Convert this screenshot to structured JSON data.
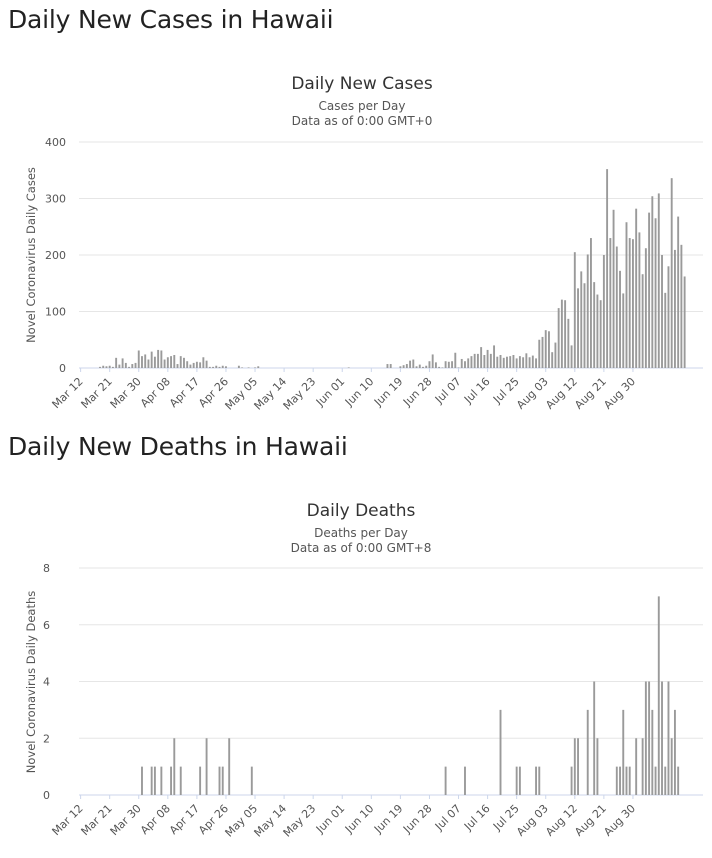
{
  "headings": {
    "cases": "Daily New Cases in Hawaii",
    "deaths": "Daily New Deaths in Hawaii"
  },
  "chart_data": [
    {
      "type": "bar",
      "title": "Daily New Cases",
      "subtitle": "Cases per Day",
      "subtitle2": "Data as of 0:00 GMT+0",
      "xlabel": "",
      "ylabel": "Novel Coronavirus Daily Cases",
      "ylim": [
        0,
        400
      ],
      "yticks": [
        0,
        100,
        200,
        300,
        400
      ],
      "start_date": "Mar 12",
      "xtick_labels": [
        "Mar 12",
        "Mar 21",
        "Mar 30",
        "Apr 08",
        "Apr 17",
        "Apr 26",
        "May 05",
        "May 14",
        "May 23",
        "Jun 01",
        "Jun 10",
        "Jun 19",
        "Jun 28",
        "Jul 07",
        "Jul 16",
        "Jul 25",
        "Aug 03",
        "Aug 12",
        "Aug 21",
        "Aug 30"
      ],
      "values": [
        0,
        0,
        0,
        0,
        0,
        0,
        2,
        4,
        3,
        4,
        2,
        18,
        6,
        17,
        9,
        2,
        7,
        9,
        31,
        21,
        24,
        15,
        29,
        20,
        32,
        31,
        15,
        19,
        21,
        23,
        7,
        21,
        18,
        12,
        6,
        9,
        11,
        10,
        19,
        13,
        2,
        2,
        4,
        2,
        4,
        3,
        0,
        0,
        0,
        4,
        1,
        0,
        1,
        0,
        1,
        3,
        0,
        0,
        0,
        0,
        0,
        0,
        0,
        0,
        0,
        0,
        0,
        0,
        0,
        0,
        0,
        0,
        0,
        0,
        0,
        0,
        0,
        0,
        0,
        0,
        0,
        0,
        0,
        1,
        0,
        0,
        0,
        0,
        0,
        0,
        0,
        0,
        0,
        0,
        0,
        7,
        7,
        0,
        0,
        3,
        5,
        7,
        13,
        15,
        3,
        6,
        2,
        4,
        12,
        24,
        10,
        2,
        1,
        12,
        11,
        12,
        27,
        1,
        16,
        12,
        17,
        21,
        25,
        25,
        37,
        23,
        32,
        25,
        40,
        20,
        23,
        18,
        20,
        21,
        23,
        17,
        21,
        19,
        26,
        19,
        22,
        17,
        50,
        55,
        67,
        65,
        28,
        45,
        106,
        121,
        120,
        87,
        40,
        205,
        141,
        171,
        150,
        201,
        230,
        152,
        130,
        120,
        200,
        352,
        230,
        280,
        215,
        172,
        132,
        258,
        230,
        228,
        282,
        240,
        166,
        212,
        275,
        304,
        265,
        309,
        200,
        133,
        180,
        336,
        209,
        268,
        218,
        162
      ]
    },
    {
      "type": "bar",
      "title": "Daily Deaths",
      "subtitle": "Deaths per Day",
      "subtitle2": "Data as of 0:00 GMT+8",
      "xlabel": "",
      "ylabel": "Novel Coronavirus Daily Deaths",
      "ylim": [
        0,
        8
      ],
      "yticks": [
        0,
        2,
        4,
        6,
        8
      ],
      "start_date": "Mar 12",
      "xtick_labels": [
        "Mar 12",
        "Mar 21",
        "Mar 30",
        "Apr 08",
        "Apr 17",
        "Apr 26",
        "May 05",
        "May 14",
        "May 23",
        "Jun 01",
        "Jun 10",
        "Jun 19",
        "Jun 28",
        "Jul 07",
        "Jul 16",
        "Jul 25",
        "Aug 03",
        "Aug 12",
        "Aug 21",
        "Aug 30"
      ],
      "values": [
        0,
        0,
        0,
        0,
        0,
        0,
        0,
        0,
        0,
        0,
        0,
        0,
        0,
        0,
        0,
        0,
        0,
        0,
        0,
        1,
        0,
        0,
        1,
        1,
        0,
        1,
        0,
        0,
        1,
        2,
        0,
        1,
        0,
        0,
        0,
        0,
        0,
        1,
        0,
        2,
        0,
        0,
        0,
        1,
        1,
        0,
        2,
        0,
        0,
        0,
        0,
        0,
        0,
        1,
        0,
        0,
        0,
        0,
        0,
        0,
        0,
        0,
        0,
        0,
        0,
        0,
        0,
        0,
        0,
        0,
        0,
        0,
        0,
        0,
        0,
        0,
        0,
        0,
        0,
        0,
        0,
        0,
        0,
        0,
        0,
        0,
        0,
        0,
        0,
        0,
        0,
        0,
        0,
        0,
        0,
        0,
        0,
        0,
        0,
        0,
        0,
        0,
        0,
        0,
        0,
        0,
        0,
        0,
        0,
        0,
        0,
        0,
        0,
        1,
        0,
        0,
        0,
        0,
        0,
        1,
        0,
        0,
        0,
        0,
        0,
        0,
        0,
        0,
        0,
        0,
        3,
        0,
        0,
        0,
        0,
        1,
        1,
        0,
        0,
        0,
        0,
        1,
        1,
        0,
        0,
        0,
        0,
        0,
        0,
        0,
        0,
        0,
        1,
        2,
        2,
        0,
        0,
        3,
        0,
        4,
        2,
        0,
        0,
        0,
        0,
        0,
        1,
        1,
        3,
        1,
        1,
        0,
        2,
        0,
        2,
        4,
        4,
        3,
        1,
        7,
        4,
        1,
        4,
        2,
        3,
        1
      ]
    }
  ]
}
